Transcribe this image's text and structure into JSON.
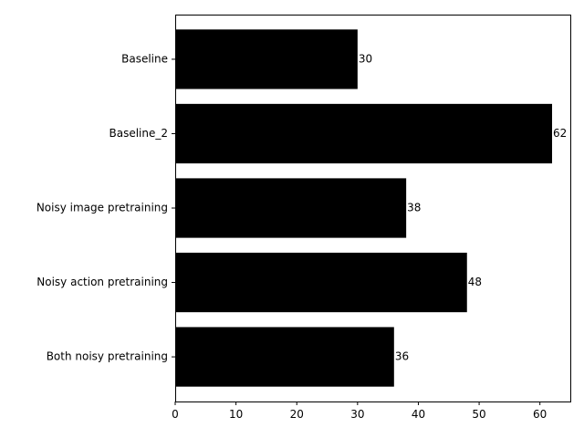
{
  "chart_data": {
    "type": "bar",
    "orientation": "horizontal",
    "categories": [
      "Baseline",
      "Baseline_2",
      "Noisy image pretraining",
      "Noisy action pretraining",
      "Both noisy pretraining"
    ],
    "values": [
      30,
      62,
      38,
      48,
      36
    ],
    "data_labels": [
      "30",
      "62",
      "38",
      "48",
      "36"
    ],
    "title": "",
    "xlabel": "",
    "ylabel": "",
    "xlim": [
      0,
      65
    ],
    "xticks": [
      0,
      10,
      20,
      30,
      40,
      50,
      60
    ],
    "grid": false,
    "bar_color": "#000000"
  }
}
